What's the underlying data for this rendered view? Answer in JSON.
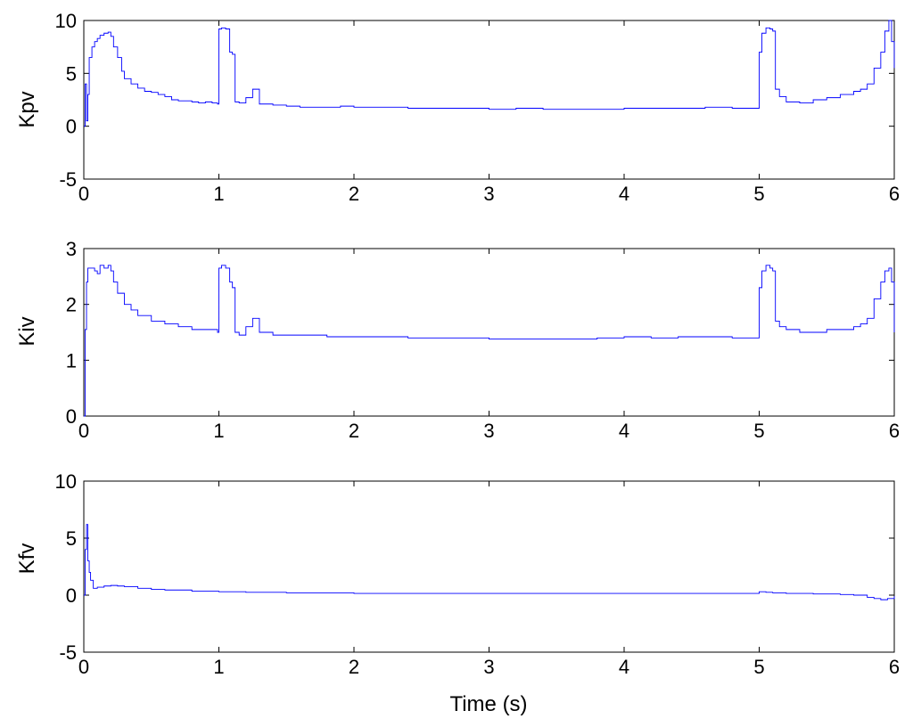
{
  "chart_data": [
    {
      "type": "line",
      "ylabel": "Kpv",
      "xlabel": "",
      "xlim": [
        0,
        6
      ],
      "ylim": [
        -5,
        10
      ],
      "xticks": [
        "0",
        "1",
        "2",
        "3",
        "4",
        "5",
        "6"
      ],
      "yticks": [
        "-5",
        "0",
        "5",
        "10"
      ],
      "grid": false,
      "line_color": "#0000ff",
      "series": [
        {
          "x": [
            0.0,
            0.01,
            0.02,
            0.03,
            0.04,
            0.06,
            0.08,
            0.1,
            0.12,
            0.15,
            0.18,
            0.2,
            0.22,
            0.25,
            0.28,
            0.3,
            0.35,
            0.4,
            0.45,
            0.5,
            0.55,
            0.6,
            0.65,
            0.7,
            0.75,
            0.8,
            0.85,
            0.9,
            0.95,
            0.99,
            1.0,
            1.02,
            1.05,
            1.08,
            1.1,
            1.12,
            1.15,
            1.2,
            1.25,
            1.3,
            1.4,
            1.5,
            1.6,
            1.7,
            1.8,
            1.9,
            2.0,
            2.2,
            2.4,
            2.6,
            2.8,
            3.0,
            3.2,
            3.4,
            3.6,
            3.8,
            4.0,
            4.2,
            4.4,
            4.6,
            4.8,
            4.99,
            5.0,
            5.02,
            5.05,
            5.08,
            5.1,
            5.12,
            5.15,
            5.2,
            5.3,
            5.4,
            5.5,
            5.6,
            5.7,
            5.75,
            5.8,
            5.85,
            5.9,
            5.93,
            5.96,
            5.98,
            6.0
          ],
          "y": [
            0.0,
            4.0,
            0.5,
            3.0,
            6.5,
            7.5,
            8.0,
            8.3,
            8.6,
            8.8,
            8.9,
            8.5,
            7.5,
            6.5,
            5.2,
            4.5,
            4.0,
            3.6,
            3.3,
            3.2,
            3.0,
            2.8,
            2.5,
            2.4,
            2.4,
            2.3,
            2.2,
            2.3,
            2.2,
            2.1,
            9.2,
            9.3,
            9.2,
            7.0,
            6.8,
            2.3,
            2.2,
            2.7,
            3.5,
            2.1,
            2.0,
            1.9,
            1.8,
            1.8,
            1.8,
            1.9,
            1.8,
            1.8,
            1.7,
            1.7,
            1.7,
            1.6,
            1.7,
            1.6,
            1.6,
            1.6,
            1.7,
            1.7,
            1.7,
            1.8,
            1.7,
            1.7,
            7.0,
            8.8,
            9.3,
            9.2,
            9.0,
            3.5,
            2.8,
            2.3,
            2.2,
            2.5,
            2.7,
            3.0,
            3.3,
            3.5,
            4.0,
            5.5,
            7.0,
            9.0,
            10.0,
            8.0,
            5.5
          ]
        }
      ]
    },
    {
      "type": "line",
      "ylabel": "Kiv",
      "xlabel": "",
      "xlim": [
        0,
        6
      ],
      "ylim": [
        0,
        3
      ],
      "xticks": [
        "0",
        "1",
        "2",
        "3",
        "4",
        "5",
        "6"
      ],
      "yticks": [
        "0",
        "1",
        "2",
        "3"
      ],
      "grid": false,
      "line_color": "#0000ff",
      "series": [
        {
          "x": [
            0.0,
            0.01,
            0.02,
            0.03,
            0.05,
            0.08,
            0.1,
            0.12,
            0.15,
            0.18,
            0.2,
            0.22,
            0.25,
            0.3,
            0.35,
            0.4,
            0.5,
            0.6,
            0.7,
            0.8,
            0.9,
            0.99,
            1.0,
            1.02,
            1.05,
            1.08,
            1.1,
            1.12,
            1.15,
            1.2,
            1.25,
            1.3,
            1.4,
            1.6,
            1.8,
            2.0,
            2.2,
            2.4,
            2.6,
            2.8,
            3.0,
            3.2,
            3.4,
            3.6,
            3.8,
            4.0,
            4.2,
            4.4,
            4.6,
            4.8,
            4.99,
            5.0,
            5.02,
            5.05,
            5.08,
            5.1,
            5.12,
            5.15,
            5.2,
            5.3,
            5.4,
            5.5,
            5.6,
            5.7,
            5.75,
            5.8,
            5.85,
            5.9,
            5.93,
            5.96,
            5.98,
            6.0
          ],
          "y": [
            0.0,
            1.55,
            2.4,
            2.65,
            2.65,
            2.6,
            2.55,
            2.7,
            2.65,
            2.7,
            2.6,
            2.4,
            2.2,
            2.0,
            1.9,
            1.8,
            1.7,
            1.65,
            1.6,
            1.55,
            1.55,
            1.5,
            2.65,
            2.7,
            2.65,
            2.4,
            2.3,
            1.5,
            1.45,
            1.6,
            1.75,
            1.5,
            1.45,
            1.45,
            1.42,
            1.42,
            1.42,
            1.4,
            1.4,
            1.4,
            1.38,
            1.38,
            1.38,
            1.38,
            1.4,
            1.42,
            1.4,
            1.42,
            1.42,
            1.4,
            1.4,
            2.3,
            2.6,
            2.7,
            2.65,
            2.6,
            1.7,
            1.6,
            1.55,
            1.5,
            1.5,
            1.55,
            1.55,
            1.6,
            1.65,
            1.75,
            2.1,
            2.4,
            2.6,
            2.65,
            2.4,
            1.5
          ]
        }
      ]
    },
    {
      "type": "line",
      "ylabel": "Kfv",
      "xlabel": "Time (s)",
      "xlim": [
        0,
        6
      ],
      "ylim": [
        -5,
        10
      ],
      "xticks": [
        "0",
        "1",
        "2",
        "3",
        "4",
        "5",
        "6"
      ],
      "yticks": [
        "-5",
        "0",
        "5",
        "10"
      ],
      "grid": false,
      "line_color": "#0000ff",
      "series": [
        {
          "x": [
            0.0,
            0.01,
            0.02,
            0.03,
            0.04,
            0.05,
            0.07,
            0.1,
            0.15,
            0.2,
            0.25,
            0.3,
            0.4,
            0.5,
            0.6,
            0.8,
            1.0,
            1.2,
            1.5,
            2.0,
            2.5,
            3.0,
            3.5,
            4.0,
            4.5,
            4.99,
            5.0,
            5.05,
            5.1,
            5.2,
            5.4,
            5.6,
            5.7,
            5.8,
            5.85,
            5.9,
            5.95,
            6.0
          ],
          "y": [
            0.0,
            4.0,
            6.2,
            3.0,
            2.0,
            1.3,
            0.6,
            0.7,
            0.8,
            0.85,
            0.8,
            0.75,
            0.6,
            0.5,
            0.45,
            0.35,
            0.3,
            0.25,
            0.2,
            0.15,
            0.15,
            0.15,
            0.15,
            0.15,
            0.15,
            0.15,
            0.3,
            0.25,
            0.2,
            0.15,
            0.1,
            0.05,
            0.0,
            -0.2,
            -0.3,
            -0.4,
            -0.3,
            -0.1
          ]
        }
      ]
    }
  ]
}
